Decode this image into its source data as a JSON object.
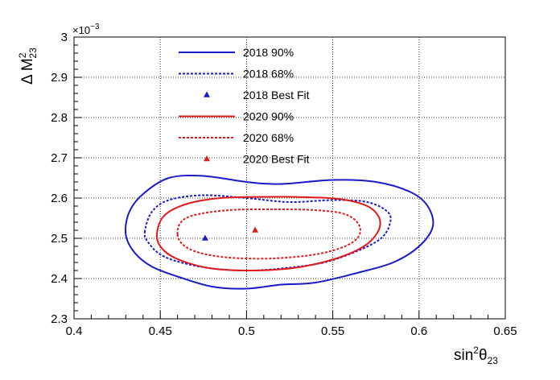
{
  "chart_data": {
    "type": "line",
    "xlabel": {
      "base": "sin",
      "sup": "2",
      "theta": "θ",
      "sub": "23"
    },
    "ylabel": {
      "base": "Δ M",
      "sup": "2",
      "sub": "23"
    },
    "y_multiplier": {
      "base": "×10",
      "exp": "−3"
    },
    "xlim": [
      0.4,
      0.65
    ],
    "ylim": [
      2.3,
      3.0
    ],
    "grid": true,
    "legend_position": "top-center",
    "x_ticks": [
      "0.4",
      "0.45",
      "0.5",
      "0.55",
      "0.6",
      "0.65"
    ],
    "y_ticks": [
      "2.3",
      "2.4",
      "2.5",
      "2.6",
      "2.7",
      "2.8",
      "2.9",
      "3"
    ],
    "colors": {
      "blue": "#1a1acc",
      "red": "#e01b1b"
    },
    "series": [
      {
        "name": "2018 90%",
        "style": "solid",
        "color": "blue",
        "kind": "contour",
        "points": [
          [
            0.43,
            2.51
          ],
          [
            0.432,
            2.565
          ],
          [
            0.44,
            2.61
          ],
          [
            0.455,
            2.65
          ],
          [
            0.475,
            2.655
          ],
          [
            0.5,
            2.64
          ],
          [
            0.52,
            2.635
          ],
          [
            0.55,
            2.645
          ],
          [
            0.575,
            2.64
          ],
          [
            0.595,
            2.615
          ],
          [
            0.605,
            2.58
          ],
          [
            0.608,
            2.53
          ],
          [
            0.6,
            2.48
          ],
          [
            0.585,
            2.44
          ],
          [
            0.565,
            2.415
          ],
          [
            0.54,
            2.39
          ],
          [
            0.52,
            2.385
          ],
          [
            0.5,
            2.375
          ],
          [
            0.48,
            2.38
          ],
          [
            0.46,
            2.405
          ],
          [
            0.445,
            2.43
          ],
          [
            0.435,
            2.465
          ]
        ]
      },
      {
        "name": "2018 68%",
        "style": "dotted",
        "color": "blue",
        "kind": "contour",
        "points": [
          [
            0.441,
            2.515
          ],
          [
            0.445,
            2.565
          ],
          [
            0.455,
            2.595
          ],
          [
            0.475,
            2.607
          ],
          [
            0.5,
            2.6
          ],
          [
            0.525,
            2.59
          ],
          [
            0.55,
            2.595
          ],
          [
            0.57,
            2.59
          ],
          [
            0.582,
            2.565
          ],
          [
            0.583,
            2.535
          ],
          [
            0.578,
            2.5
          ],
          [
            0.565,
            2.47
          ],
          [
            0.545,
            2.44
          ],
          [
            0.52,
            2.425
          ],
          [
            0.5,
            2.42
          ],
          [
            0.48,
            2.425
          ],
          [
            0.462,
            2.44
          ],
          [
            0.45,
            2.46
          ],
          [
            0.443,
            2.49
          ]
        ]
      },
      {
        "name": "2018 Best Fit",
        "style": "marker",
        "color": "blue",
        "kind": "point",
        "x": 0.476,
        "y": 2.5
      },
      {
        "name": "2020 90%",
        "style": "solid",
        "color": "red",
        "kind": "contour",
        "points": [
          [
            0.448,
            2.505
          ],
          [
            0.452,
            2.555
          ],
          [
            0.465,
            2.585
          ],
          [
            0.485,
            2.6
          ],
          [
            0.51,
            2.603
          ],
          [
            0.535,
            2.602
          ],
          [
            0.555,
            2.597
          ],
          [
            0.57,
            2.58
          ],
          [
            0.577,
            2.55
          ],
          [
            0.576,
            2.515
          ],
          [
            0.568,
            2.48
          ],
          [
            0.552,
            2.45
          ],
          [
            0.53,
            2.428
          ],
          [
            0.505,
            2.42
          ],
          [
            0.48,
            2.425
          ],
          [
            0.462,
            2.445
          ],
          [
            0.452,
            2.47
          ]
        ]
      },
      {
        "name": "2020 68%",
        "style": "dotted",
        "color": "red",
        "kind": "contour",
        "points": [
          [
            0.46,
            2.51
          ],
          [
            0.462,
            2.54
          ],
          [
            0.47,
            2.558
          ],
          [
            0.49,
            2.57
          ],
          [
            0.515,
            2.572
          ],
          [
            0.54,
            2.57
          ],
          [
            0.557,
            2.56
          ],
          [
            0.565,
            2.535
          ],
          [
            0.565,
            2.505
          ],
          [
            0.557,
            2.48
          ],
          [
            0.54,
            2.46
          ],
          [
            0.515,
            2.45
          ],
          [
            0.49,
            2.452
          ],
          [
            0.472,
            2.465
          ],
          [
            0.463,
            2.485
          ]
        ]
      },
      {
        "name": "2020 Best Fit",
        "style": "marker",
        "color": "red",
        "kind": "point",
        "x": 0.505,
        "y": 2.52
      }
    ]
  }
}
